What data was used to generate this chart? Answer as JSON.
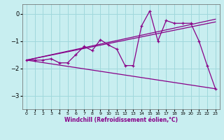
{
  "xlabel": "Windchill (Refroidissement éolien,°C)",
  "background_color": "#c8eef0",
  "line_color": "#880088",
  "grid_color": "#a0d8dc",
  "xlim": [
    -0.5,
    23.5
  ],
  "ylim": [
    -3.5,
    0.35
  ],
  "xticks": [
    0,
    1,
    2,
    3,
    4,
    5,
    6,
    7,
    8,
    9,
    10,
    11,
    12,
    13,
    14,
    15,
    16,
    17,
    18,
    19,
    20,
    21,
    22,
    23
  ],
  "yticks": [
    0,
    -1,
    -2,
    -3
  ],
  "data_line": {
    "x": [
      0,
      1,
      2,
      3,
      4,
      5,
      6,
      7,
      8,
      9,
      10,
      11,
      12,
      13,
      14,
      15,
      16,
      17,
      18,
      19,
      20,
      21,
      22,
      23
    ],
    "y": [
      -1.7,
      -1.7,
      -1.7,
      -1.65,
      -1.8,
      -1.8,
      -1.5,
      -1.2,
      -1.35,
      -0.95,
      -1.15,
      -1.3,
      -1.9,
      -1.9,
      -0.45,
      0.1,
      -1.0,
      -0.25,
      -0.35,
      -0.35,
      -0.35,
      -1.0,
      -1.9,
      -2.75
    ]
  },
  "trend_line": {
    "x": [
      0,
      23
    ],
    "y": [
      -1.7,
      -2.75
    ]
  },
  "regression_line1": {
    "x": [
      0,
      23
    ],
    "y": [
      -1.7,
      -0.3
    ]
  },
  "regression_line2": {
    "x": [
      0,
      23
    ],
    "y": [
      -1.7,
      -0.2
    ]
  }
}
